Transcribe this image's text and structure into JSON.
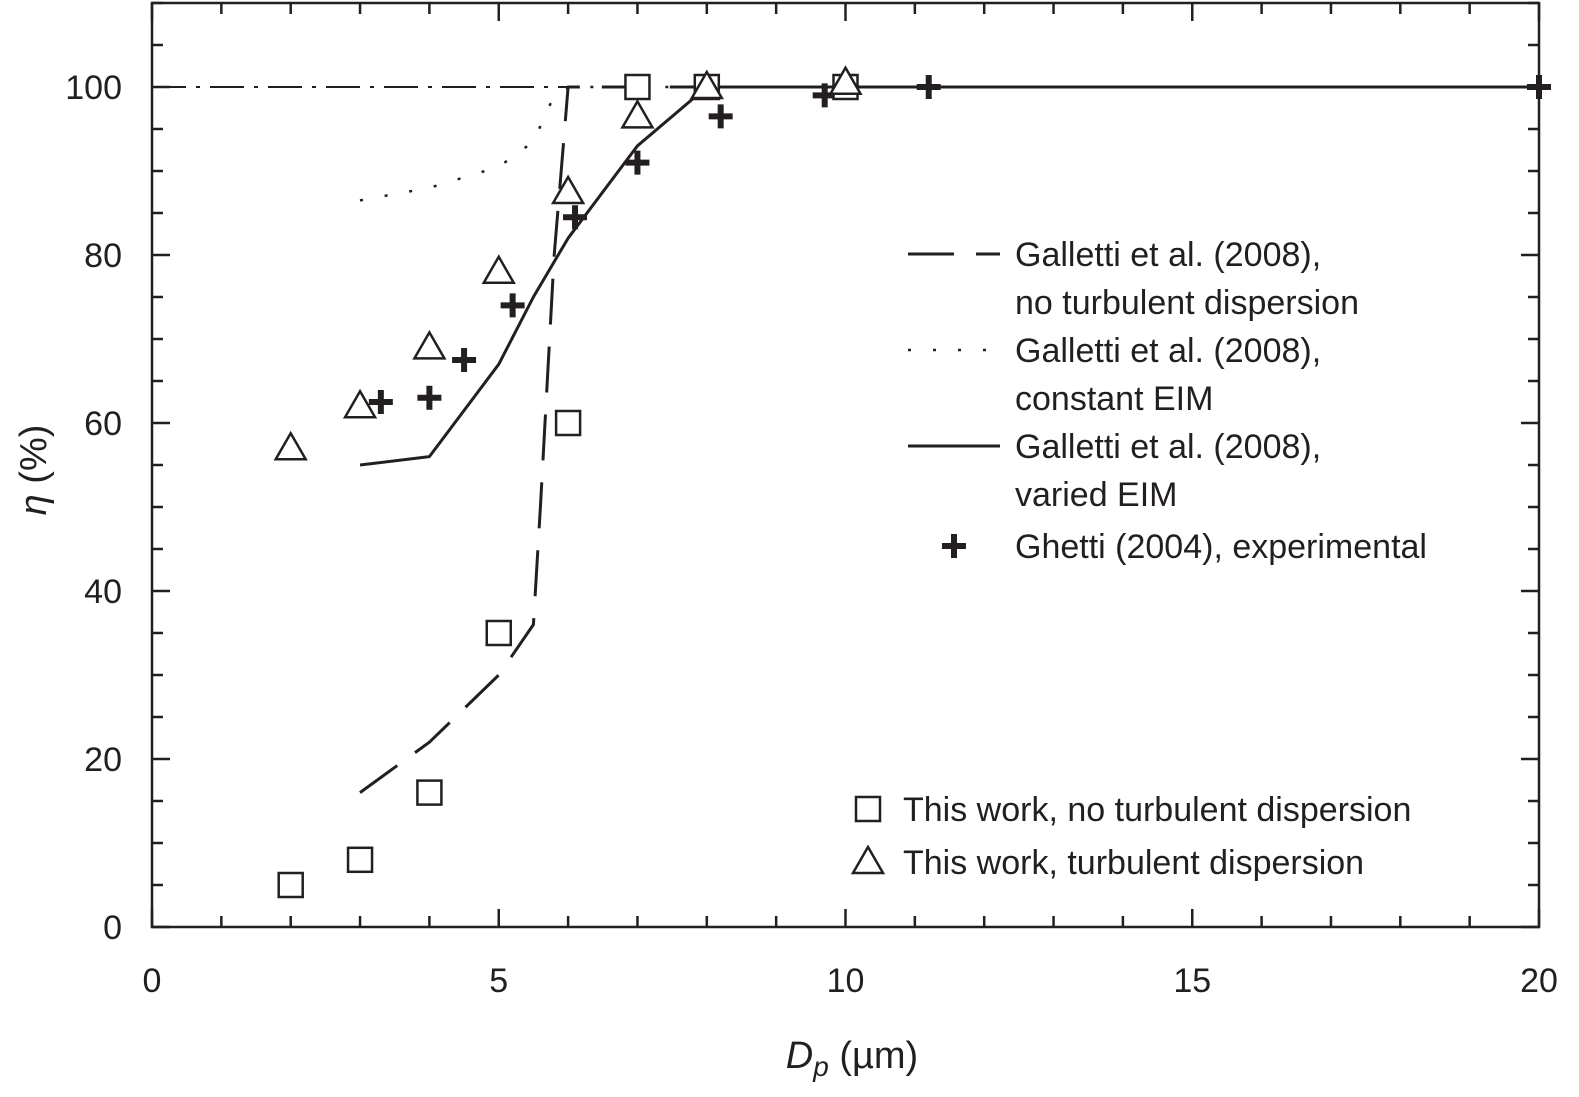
{
  "chart_data": {
    "type": "scatter",
    "title": "",
    "xlabel": {
      "main": "D",
      "sub": "p",
      "unit": " (µm)"
    },
    "ylabel": {
      "symbol": "η",
      "unit": " (%)"
    },
    "xlim": [
      0,
      20
    ],
    "ylim": [
      0,
      110
    ],
    "xticks": [
      0,
      5,
      10,
      15,
      20
    ],
    "yticks": [
      0,
      20,
      40,
      60,
      80,
      100
    ],
    "grid": false,
    "series": [
      {
        "name": "Galletti et al. (2008), no turbulent dispersion",
        "style": "dashed",
        "points": [
          [
            3,
            16
          ],
          [
            4,
            22
          ],
          [
            5,
            30
          ],
          [
            5.5,
            36
          ],
          [
            5.6,
            50
          ],
          [
            5.8,
            80
          ],
          [
            5.9,
            90
          ],
          [
            6,
            100
          ],
          [
            7,
            100
          ],
          [
            8,
            100
          ],
          [
            10,
            100
          ],
          [
            20,
            100
          ]
        ]
      },
      {
        "name": "Galletti et al. (2008), constant EIM",
        "style": "dotted",
        "points": [
          [
            3,
            86.5
          ],
          [
            4,
            88
          ],
          [
            5,
            90.5
          ],
          [
            5.5,
            93.5
          ],
          [
            5.8,
            99
          ],
          [
            6,
            100
          ],
          [
            7,
            100
          ],
          [
            10,
            100
          ],
          [
            20,
            100
          ]
        ]
      },
      {
        "name": "Galletti et al. (2008), varied EIM",
        "style": "solid",
        "points": [
          [
            3,
            55
          ],
          [
            4,
            56
          ],
          [
            5,
            67
          ],
          [
            5.5,
            75
          ],
          [
            6,
            82
          ],
          [
            7,
            93
          ],
          [
            8,
            100
          ],
          [
            10,
            100
          ],
          [
            20,
            100
          ]
        ]
      },
      {
        "name": "Ghetti (2004), experimental",
        "marker": "plus",
        "points": [
          [
            3.3,
            62.5
          ],
          [
            4,
            63
          ],
          [
            4.5,
            67.5
          ],
          [
            5.2,
            74
          ],
          [
            6.1,
            84.5
          ],
          [
            7,
            91
          ],
          [
            8.2,
            96.5
          ],
          [
            9.7,
            99
          ],
          [
            11.2,
            100
          ],
          [
            20,
            100
          ]
        ]
      },
      {
        "name": "This work, no turbulent dispersion",
        "marker": "square",
        "points": [
          [
            2,
            5
          ],
          [
            3,
            8
          ],
          [
            4,
            16
          ],
          [
            5,
            35
          ],
          [
            6,
            60
          ],
          [
            7,
            100
          ],
          [
            8,
            100
          ],
          [
            10,
            100
          ]
        ]
      },
      {
        "name": "This work, turbulent dispersion",
        "marker": "triangle",
        "points": [
          [
            2,
            57
          ],
          [
            3,
            62
          ],
          [
            4,
            69
          ],
          [
            5,
            78
          ],
          [
            6,
            87.5
          ],
          [
            7,
            96.5
          ],
          [
            8,
            100
          ],
          [
            10,
            100.5
          ]
        ]
      }
    ],
    "reference_line": {
      "style": "dash-dot",
      "y": 100,
      "x_range": [
        0,
        6
      ]
    },
    "legend_top": [
      {
        "series": 0,
        "line1": "Galletti et al. (2008),",
        "line2": "no turbulent dispersion"
      },
      {
        "series": 1,
        "line1": "Galletti et al. (2008),",
        "line2": "constant EIM"
      },
      {
        "series": 2,
        "line1": "Galletti et al. (2008),",
        "line2": "varied EIM"
      },
      {
        "series": 3,
        "line1": "Ghetti (2004), experimental",
        "line2": ""
      }
    ],
    "legend_bottom": [
      {
        "series": 4,
        "line1": "This work, no turbulent dispersion"
      },
      {
        "series": 5,
        "line1": "This work, turbulent dispersion"
      }
    ],
    "colors": {
      "ink": "#231f20",
      "background": "#ffffff"
    }
  }
}
